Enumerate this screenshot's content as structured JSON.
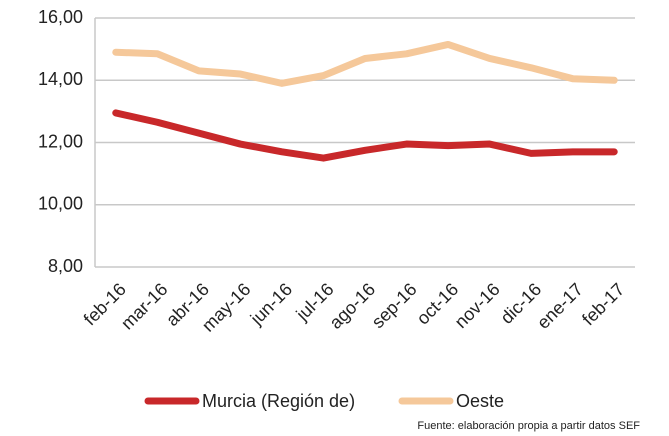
{
  "chart_data": {
    "type": "line",
    "categories": [
      "feb-16",
      "mar-16",
      "abr-16",
      "may-16",
      "jun-16",
      "jul-16",
      "ago-16",
      "sep-16",
      "oct-16",
      "nov-16",
      "dic-16",
      "ene-17",
      "feb-17"
    ],
    "series": [
      {
        "name": "Murcia (Región de)",
        "color": "#c8282a",
        "values": [
          12.95,
          12.65,
          12.3,
          11.95,
          11.7,
          11.5,
          11.75,
          11.95,
          11.9,
          11.95,
          11.65,
          11.7,
          11.7
        ]
      },
      {
        "name": "Oeste",
        "color": "#f5c89a",
        "values": [
          14.9,
          14.85,
          14.3,
          14.2,
          13.9,
          14.15,
          14.7,
          14.85,
          15.15,
          14.7,
          14.4,
          14.05,
          14.0
        ]
      }
    ],
    "ylim": [
      8,
      16
    ],
    "yticks": [
      {
        "value": 8,
        "label": "8,00"
      },
      {
        "value": 10,
        "label": "10,00"
      },
      {
        "value": 12,
        "label": "12,00"
      },
      {
        "value": 14,
        "label": "14,00"
      },
      {
        "value": 16,
        "label": "16,00"
      }
    ],
    "grid": true,
    "legend": "bottom",
    "source": "Fuente: elaboración propia a partir datos SEF"
  }
}
